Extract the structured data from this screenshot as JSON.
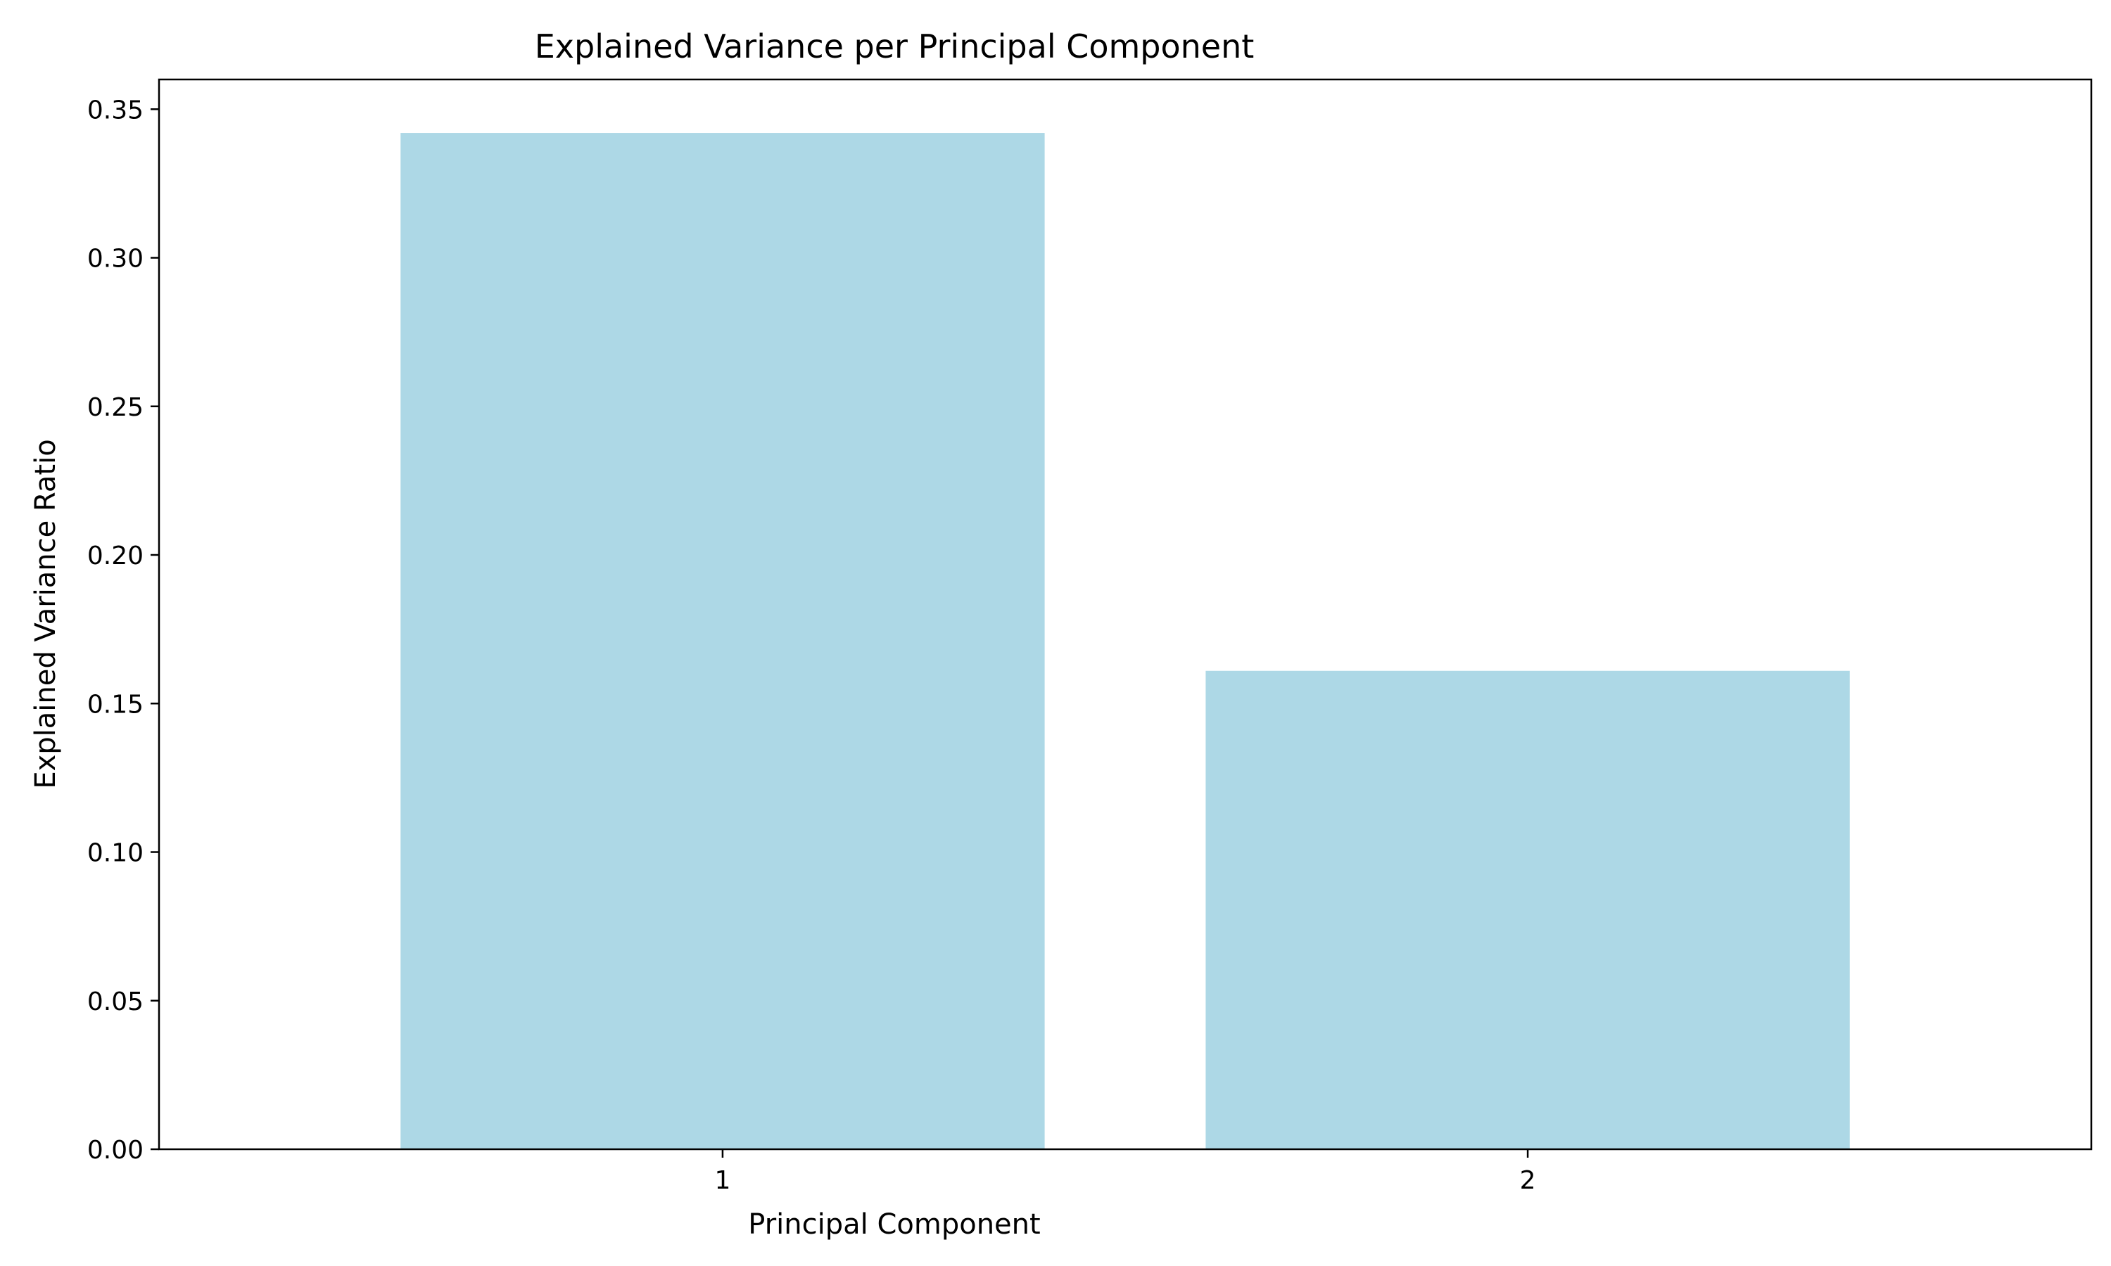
{
  "chart_data": {
    "type": "bar",
    "title": "Explained Variance per Principal Component",
    "xlabel": "Principal Component",
    "ylabel": "Explained Variance Ratio",
    "categories": [
      "1",
      "2"
    ],
    "values": [
      0.342,
      0.161
    ],
    "ylim": [
      0,
      0.36
    ],
    "yticks": [
      0.0,
      0.05,
      0.1,
      0.15,
      0.2,
      0.25,
      0.3,
      0.35
    ],
    "ytick_labels": [
      "0.00",
      "0.05",
      "0.10",
      "0.15",
      "0.20",
      "0.25",
      "0.30",
      "0.35"
    ],
    "grid": false,
    "bar_color": "#add8e6"
  }
}
